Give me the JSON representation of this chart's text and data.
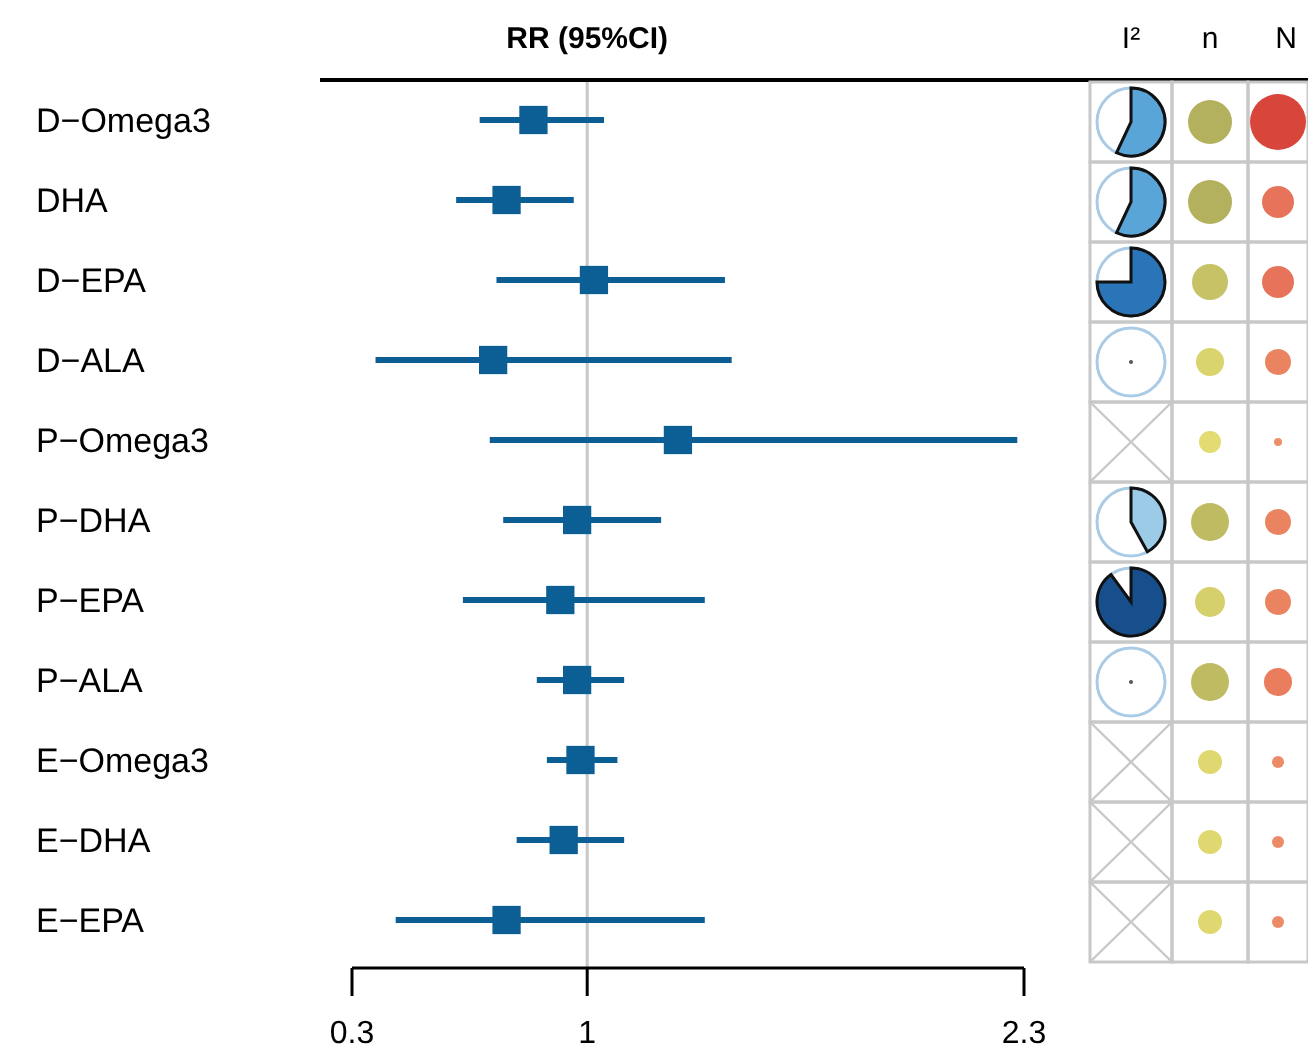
{
  "chart_data": {
    "type": "scatter",
    "orientation": "horizontal",
    "title": "RR (95%CI)",
    "marker": "square",
    "grid": false,
    "categories": [
      "D−Omega3",
      "DHA",
      "D−EPA",
      "D−ALA",
      "P−Omega3",
      "P−DHA",
      "P−EPA",
      "P−ALA",
      "E−Omega3",
      "E−DHA",
      "E−EPA"
    ],
    "series": [
      {
        "color": "#0b5f94",
        "values": [
          0.84,
          0.76,
          1.02,
          0.72,
          1.27,
          0.97,
          0.92,
          0.97,
          0.98,
          0.93,
          0.76
        ],
        "errors": [
          [
            0.68,
            1.05
          ],
          [
            0.61,
            0.96
          ],
          [
            0.73,
            1.41
          ],
          [
            0.37,
            1.43
          ],
          [
            0.71,
            2.28
          ],
          [
            0.75,
            1.22
          ],
          [
            0.63,
            1.35
          ],
          [
            0.85,
            1.11
          ],
          [
            0.88,
            1.09
          ],
          [
            0.79,
            1.11
          ],
          [
            0.43,
            1.35
          ]
        ]
      }
    ],
    "xlim": [
      0.3,
      2.3
    ],
    "xticks": [
      0.3,
      1,
      2.3
    ],
    "ref_lines": [
      {
        "axis": "x",
        "value": 1,
        "color": "#c8c8c8"
      }
    ],
    "annotations": [
      "I²",
      "n",
      "N"
    ]
  }
}
